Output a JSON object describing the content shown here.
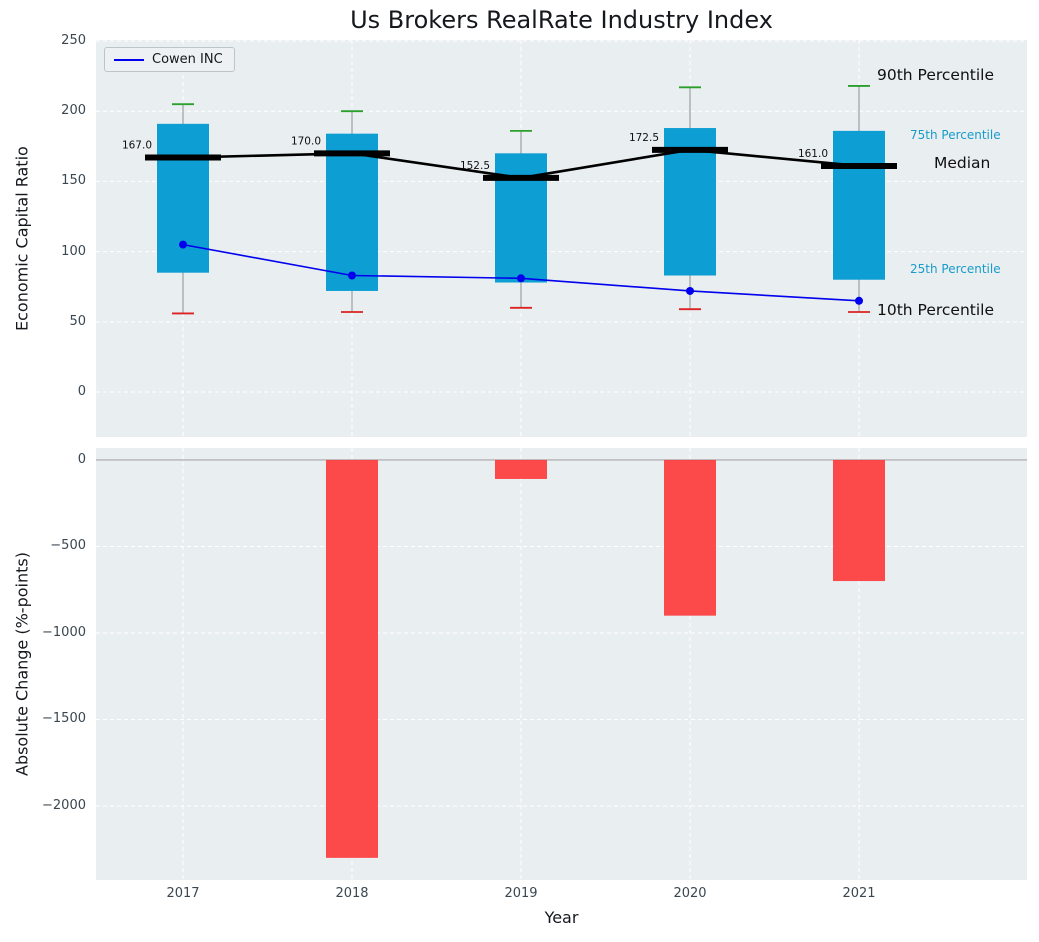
{
  "title": "Us Brokers RealRate Industry Index",
  "legend": {
    "label": "Cowen INC"
  },
  "axes": {
    "top_ylabel": "Economic Capital Ratio",
    "bottom_ylabel": "Absolute Change (%-points)",
    "xlabel": "Year"
  },
  "annotations": {
    "p90": "90th Percentile",
    "p75": "75th Percentile",
    "median": "Median",
    "p25": "25th Percentile",
    "p10": "10th Percentile"
  },
  "colors": {
    "box_fill": "#0d9ed3",
    "negative_bar": "#ff2b2b",
    "company_line": "#0000ee",
    "median": "#000000",
    "whisker": "#9aa0a4",
    "cap_top": "#2ca02c",
    "cap_bottom": "#dd2222",
    "plot_background": "#e9eef0",
    "grid": "#ffffff",
    "tick_label": "#3a4750",
    "percentile_label_cyan": "#189ccc",
    "zero_line": "#a6a6a6"
  },
  "chart_data": [
    {
      "type": "boxplot+line",
      "title": "Us Brokers RealRate Industry Index",
      "ylabel": "Economic Capital Ratio",
      "ylim": [
        -32,
        250.7
      ],
      "yticks": [
        0,
        50,
        100,
        150,
        200,
        250
      ],
      "ytick_labels": [
        "0",
        "50",
        "100",
        "150",
        "200",
        "250"
      ],
      "categories": [
        "2017",
        "2018",
        "2019",
        "2020",
        "2021"
      ],
      "grid": true,
      "legend_position": "upper left",
      "percentiles": {
        "p10": [
          56,
          57,
          60,
          59,
          57
        ],
        "p25": [
          85,
          72,
          78,
          83,
          80
        ],
        "median": [
          167.0,
          170.0,
          152.5,
          172.5,
          161.0
        ],
        "p75": [
          191,
          184,
          170,
          188,
          186
        ],
        "p90": [
          205,
          200,
          186,
          217,
          218
        ]
      },
      "median_labels": [
        "167.0",
        "170.0",
        "152.5",
        "172.5",
        "161.0"
      ],
      "series": [
        {
          "name": "Cowen INC",
          "values": [
            105,
            83,
            81,
            72,
            65
          ]
        }
      ]
    },
    {
      "type": "bar",
      "ylabel": "Absolute Change (%-points)",
      "xlabel": "Year",
      "ylim": [
        -2428,
        69
      ],
      "yticks": [
        0,
        -500,
        -1000,
        -1500,
        -2000
      ],
      "ytick_labels": [
        "0",
        "−500",
        "−1000",
        "−1500",
        "−2000"
      ],
      "categories": [
        "2017",
        "2018",
        "2019",
        "2020",
        "2021"
      ],
      "values": [
        0,
        -2300,
        -110,
        -900,
        -700
      ],
      "grid": true
    }
  ]
}
